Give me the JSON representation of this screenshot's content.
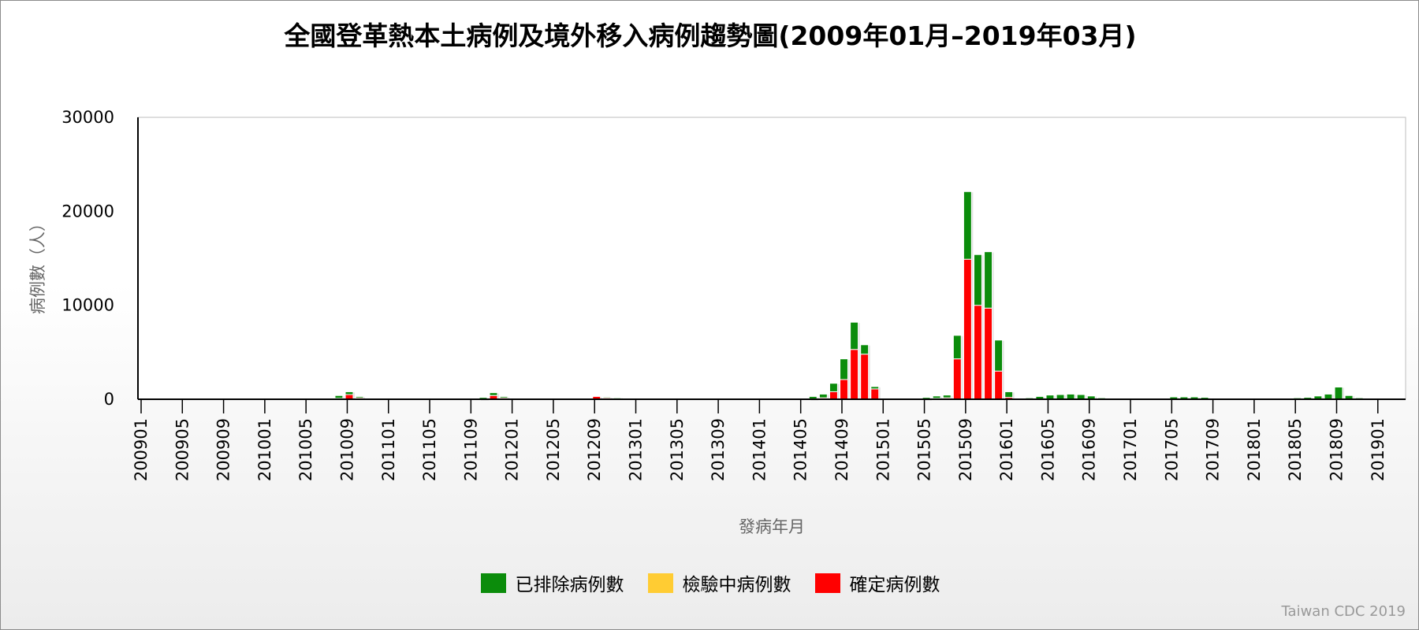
{
  "title": "全國登革熱本土病例及境外移入病例趨勢圖(2009年01月–2019年03月)",
  "credit": "Taiwan CDC 2019",
  "colors": {
    "excluded": "#0b8c0b",
    "pending": "#ffcc33",
    "confirmed": "#ff0000"
  },
  "chart_data": {
    "type": "bar",
    "stacked": true,
    "xlabel": "發病年月",
    "ylabel": "病例數（人）",
    "ylim": [
      0,
      30000
    ],
    "y_ticks": [
      "0",
      "10000",
      "20000",
      "30000"
    ],
    "x_tick_labels": [
      "200901",
      "200905",
      "200909",
      "201001",
      "201005",
      "201009",
      "201101",
      "201105",
      "201109",
      "201201",
      "201205",
      "201209",
      "201301",
      "201305",
      "201309",
      "201401",
      "201405",
      "201409",
      "201501",
      "201505",
      "201509",
      "201601",
      "201605",
      "201609",
      "201701",
      "201705",
      "201709",
      "201801",
      "201805",
      "201809",
      "201901"
    ],
    "legend_position": "bottom",
    "grid": false,
    "categories": [
      "201008",
      "201009",
      "201010",
      "201110",
      "201111",
      "201112",
      "201209",
      "201210",
      "201211",
      "201406",
      "201407",
      "201408",
      "201409",
      "201410",
      "201411",
      "201412",
      "201504",
      "201505",
      "201506",
      "201507",
      "201508",
      "201509",
      "201510",
      "201511",
      "201512",
      "201601",
      "201603",
      "201604",
      "201605",
      "201606",
      "201607",
      "201608",
      "201609",
      "201610",
      "201704",
      "201705",
      "201706",
      "201707",
      "201708",
      "201709",
      "201804",
      "201805",
      "201806",
      "201807",
      "201808",
      "201809",
      "201810",
      "201811",
      "201812",
      "201901"
    ],
    "series": [
      {
        "name": "已排除病例數",
        "values": [
          300,
          300,
          150,
          150,
          300,
          150,
          0,
          100,
          100,
          250,
          400,
          900,
          2200,
          2900,
          1000,
          250,
          100,
          150,
          250,
          300,
          2500,
          7200,
          5400,
          6000,
          3300,
          600,
          150,
          300,
          450,
          500,
          550,
          500,
          350,
          150,
          100,
          250,
          250,
          250,
          200,
          100,
          100,
          150,
          200,
          350,
          550,
          1300,
          400,
          150,
          100,
          100
        ]
      },
      {
        "name": "檢驗中病例數",
        "values": [
          0,
          0,
          0,
          0,
          0,
          0,
          0,
          0,
          0,
          0,
          0,
          0,
          0,
          0,
          0,
          0,
          0,
          0,
          0,
          0,
          0,
          0,
          0,
          0,
          0,
          0,
          0,
          0,
          0,
          0,
          0,
          0,
          0,
          0,
          0,
          0,
          0,
          0,
          0,
          0,
          0,
          0,
          0,
          0,
          0,
          0,
          0,
          0,
          0,
          0
        ]
      },
      {
        "name": "確定病例數",
        "values": [
          100,
          500,
          150,
          50,
          400,
          150,
          300,
          150,
          100,
          50,
          150,
          800,
          2100,
          5300,
          4800,
          1100,
          0,
          50,
          100,
          150,
          4300,
          14900,
          10000,
          9700,
          3000,
          200,
          0,
          0,
          0,
          0,
          0,
          0,
          0,
          0,
          0,
          0,
          0,
          0,
          0,
          0,
          0,
          0,
          0,
          0,
          0,
          0,
          0,
          0,
          0,
          0
        ]
      }
    ]
  }
}
